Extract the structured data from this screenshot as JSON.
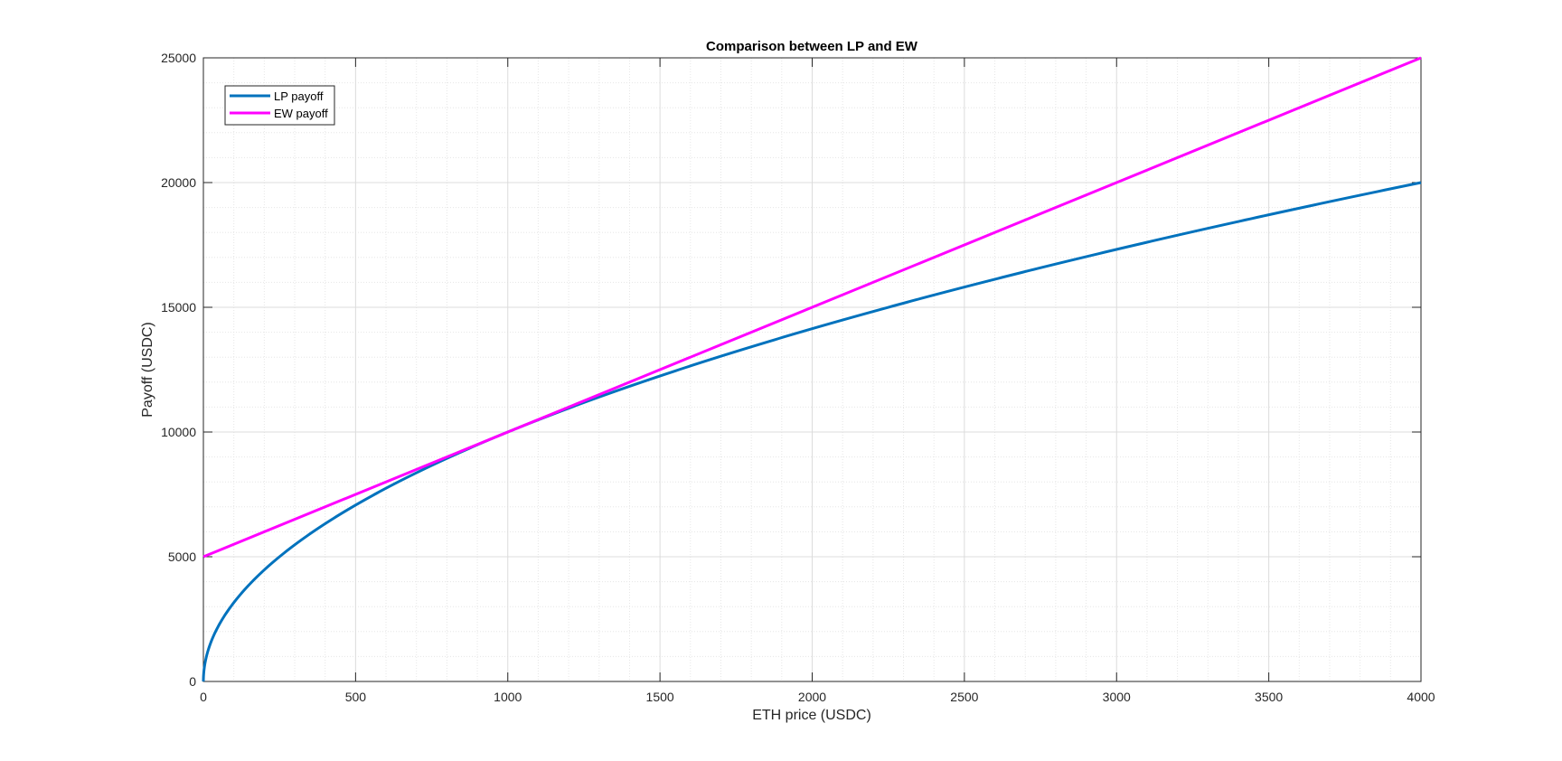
{
  "chart_data": {
    "type": "line",
    "title": "Comparison between LP and EW",
    "xlabel": "ETH price (USDC)",
    "ylabel": "Payoff (USDC)",
    "xlim": [
      0,
      4000
    ],
    "ylim": [
      0,
      25000
    ],
    "x_ticks": [
      0,
      500,
      1000,
      1500,
      2000,
      2500,
      3000,
      3500,
      4000
    ],
    "y_ticks": [
      0,
      5000,
      10000,
      15000,
      20000,
      25000
    ],
    "grid": true,
    "minor_grid": true,
    "legend_position": "top-left",
    "series": [
      {
        "name": "LP payoff",
        "color": "#0072BD",
        "x": [
          0,
          5,
          10,
          25,
          50,
          100,
          200,
          300,
          400,
          500,
          750,
          1000,
          1250,
          1500,
          1750,
          2000,
          2500,
          3000,
          3500,
          4000
        ],
        "y": [
          0,
          707,
          1000,
          1581,
          2236,
          3162,
          4472,
          5477,
          6325,
          7071,
          8660,
          10000,
          11180,
          12247,
          13229,
          14142,
          15811,
          17321,
          18708,
          20000
        ]
      },
      {
        "name": "EW payoff",
        "color": "#FF00FF",
        "x": [
          0,
          4000
        ],
        "y": [
          5000,
          25000
        ]
      }
    ]
  }
}
